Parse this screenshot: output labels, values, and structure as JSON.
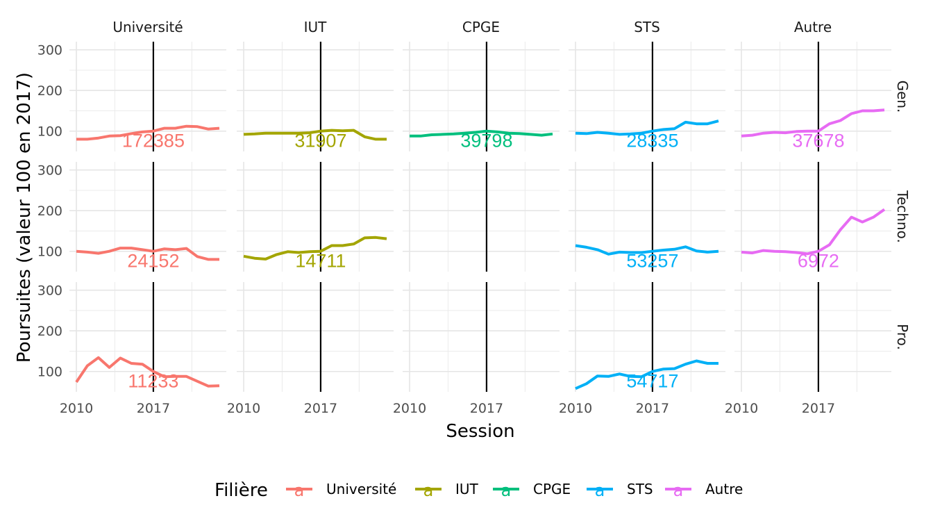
{
  "chart_data": {
    "type": "line",
    "facet_cols": [
      "Université",
      "IUT",
      "CPGE",
      "STS",
      "Autre"
    ],
    "facet_rows": [
      "Gen.",
      "Techno.",
      "Pro."
    ],
    "xlabel": "Session",
    "ylabel": "Poursuites (valeur 100 en 2017)",
    "x_ticks": [
      "2010",
      "2017"
    ],
    "y_ticks": [
      "100",
      "200",
      "300"
    ],
    "xlim": [
      2010,
      2023
    ],
    "ylim": [
      50,
      320
    ],
    "reference_line_x": 2017,
    "grid": true,
    "legend": {
      "title": "Filière",
      "position": "bottom",
      "items": [
        {
          "label": "Université",
          "color": "#F8766D",
          "glyph": "a"
        },
        {
          "label": "IUT",
          "color": "#A3A500",
          "glyph": "a"
        },
        {
          "label": "CPGE",
          "color": "#00BF7D",
          "glyph": "a"
        },
        {
          "label": "STS",
          "color": "#00B0F6",
          "glyph": "a"
        },
        {
          "label": "Autre",
          "color": "#E76BF3",
          "glyph": "a"
        }
      ]
    },
    "series": [
      {
        "row": "Gen.",
        "col": "Université",
        "annotation": "172385",
        "x": [
          2010,
          2011,
          2012,
          2013,
          2014,
          2015,
          2016,
          2017,
          2018,
          2019,
          2020,
          2021,
          2022,
          2023
        ],
        "y": [
          80,
          80,
          83,
          88,
          89,
          94,
          98,
          100,
          107,
          107,
          112,
          111,
          105,
          107
        ]
      },
      {
        "row": "Gen.",
        "col": "IUT",
        "annotation": "31907",
        "x": [
          2010,
          2011,
          2012,
          2013,
          2014,
          2015,
          2016,
          2017,
          2018,
          2019,
          2020,
          2021,
          2022,
          2023
        ],
        "y": [
          92,
          93,
          95,
          95,
          95,
          95,
          96,
          100,
          102,
          101,
          102,
          86,
          80,
          80
        ]
      },
      {
        "row": "Gen.",
        "col": "CPGE",
        "annotation": "39798",
        "x": [
          2010,
          2011,
          2012,
          2013,
          2014,
          2015,
          2016,
          2017,
          2018,
          2019,
          2020,
          2021,
          2022,
          2023
        ],
        "y": [
          88,
          88,
          91,
          92,
          93,
          95,
          97,
          100,
          98,
          95,
          94,
          92,
          90,
          93
        ]
      },
      {
        "row": "Gen.",
        "col": "STS",
        "annotation": "28335",
        "x": [
          2010,
          2011,
          2012,
          2013,
          2014,
          2015,
          2016,
          2017,
          2018,
          2019,
          2020,
          2021,
          2022,
          2023
        ],
        "y": [
          95,
          94,
          97,
          95,
          92,
          93,
          95,
          100,
          104,
          106,
          122,
          118,
          118,
          125
        ]
      },
      {
        "row": "Gen.",
        "col": "Autre",
        "annotation": "37678",
        "x": [
          2010,
          2011,
          2012,
          2013,
          2014,
          2015,
          2016,
          2017,
          2018,
          2019,
          2020,
          2021,
          2022,
          2023
        ],
        "y": [
          88,
          90,
          95,
          97,
          96,
          99,
          100,
          100,
          118,
          126,
          143,
          150,
          150,
          152
        ]
      },
      {
        "row": "Techno.",
        "col": "Université",
        "annotation": "24152",
        "x": [
          2010,
          2011,
          2012,
          2013,
          2014,
          2015,
          2016,
          2017,
          2018,
          2019,
          2020,
          2021,
          2022,
          2023
        ],
        "y": [
          100,
          98,
          95,
          100,
          108,
          108,
          104,
          100,
          106,
          104,
          107,
          87,
          80,
          80
        ]
      },
      {
        "row": "Techno.",
        "col": "IUT",
        "annotation": "14711",
        "x": [
          2010,
          2011,
          2012,
          2013,
          2014,
          2015,
          2016,
          2017,
          2018,
          2019,
          2020,
          2021,
          2022,
          2023
        ],
        "y": [
          88,
          83,
          81,
          92,
          99,
          97,
          99,
          100,
          114,
          114,
          118,
          133,
          134,
          131
        ]
      },
      {
        "row": "Techno.",
        "col": "STS",
        "annotation": "53257",
        "x": [
          2010,
          2011,
          2012,
          2013,
          2014,
          2015,
          2016,
          2017,
          2018,
          2019,
          2020,
          2021,
          2022,
          2023
        ],
        "y": [
          114,
          110,
          104,
          93,
          98,
          97,
          97,
          100,
          103,
          105,
          111,
          101,
          98,
          100
        ]
      },
      {
        "row": "Techno.",
        "col": "Autre",
        "annotation": "6972",
        "x": [
          2010,
          2011,
          2012,
          2013,
          2014,
          2015,
          2016,
          2017,
          2018,
          2019,
          2020,
          2021,
          2022,
          2023
        ],
        "y": [
          98,
          96,
          102,
          100,
          99,
          97,
          94,
          100,
          116,
          153,
          184,
          172,
          184,
          203
        ]
      },
      {
        "row": "Pro.",
        "col": "Université",
        "annotation": "11233",
        "x": [
          2010,
          2011,
          2012,
          2013,
          2014,
          2015,
          2016,
          2017,
          2018,
          2019,
          2020,
          2021,
          2022,
          2023
        ],
        "y": [
          74,
          114,
          134,
          110,
          133,
          120,
          118,
          100,
          87,
          88,
          88,
          76,
          64,
          65
        ]
      },
      {
        "row": "Pro.",
        "col": "STS",
        "annotation": "54717",
        "x": [
          2010,
          2011,
          2012,
          2013,
          2014,
          2015,
          2016,
          2017,
          2018,
          2019,
          2020,
          2021,
          2022,
          2023
        ],
        "y": [
          58,
          70,
          89,
          88,
          94,
          88,
          87,
          100,
          106,
          107,
          118,
          126,
          120,
          120
        ]
      }
    ]
  }
}
